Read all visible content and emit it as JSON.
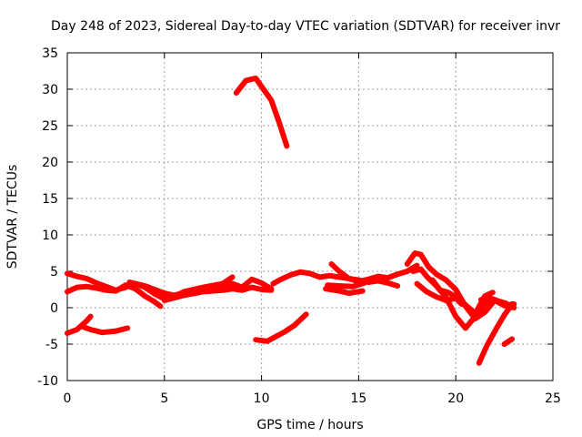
{
  "chart_data": {
    "type": "line",
    "title": "Day 248 of 2023, Sidereal Day-to-day VTEC variation (SDTVAR) for receiver invr",
    "xlabel": "GPS time / hours",
    "ylabel": "SDTVAR / TECUs",
    "xlim": [
      0,
      25
    ],
    "ylim": [
      -10,
      35
    ],
    "xticks": [
      0,
      5,
      10,
      15,
      20,
      25
    ],
    "yticks": [
      -10,
      -5,
      0,
      5,
      10,
      15,
      20,
      25,
      30,
      35
    ],
    "grid": true,
    "color": "#ff0000",
    "series": [
      {
        "name": "trace-1",
        "points": [
          [
            0,
            4.7
          ],
          [
            0.5,
            4.3
          ],
          [
            1.0,
            4.0
          ],
          [
            1.5,
            3.4
          ],
          [
            2.0,
            2.9
          ],
          [
            2.5,
            2.4
          ],
          [
            3.0,
            2.8
          ],
          [
            3.5,
            3.3
          ],
          [
            4.0,
            2.8
          ],
          [
            4.5,
            1.9
          ],
          [
            5.0,
            1.2
          ],
          [
            5.5,
            1.5
          ],
          [
            6.0,
            2.2
          ],
          [
            7.0,
            2.8
          ],
          [
            8.0,
            3.3
          ],
          [
            8.5,
            4.2
          ]
        ]
      },
      {
        "name": "trace-2",
        "points": [
          [
            0,
            2.2
          ],
          [
            0.5,
            2.8
          ],
          [
            1.0,
            2.9
          ],
          [
            1.5,
            2.7
          ],
          [
            2.0,
            2.4
          ],
          [
            2.5,
            2.3
          ],
          [
            3.0,
            3.1
          ],
          [
            3.5,
            2.6
          ],
          [
            4.0,
            1.6
          ],
          [
            4.5,
            0.8
          ],
          [
            4.8,
            0.2
          ]
        ]
      },
      {
        "name": "trace-3",
        "points": [
          [
            3.2,
            3.5
          ],
          [
            4.0,
            3.0
          ],
          [
            5.0,
            2.0
          ],
          [
            5.5,
            1.7
          ],
          [
            6.5,
            2.4
          ],
          [
            7.5,
            2.9
          ],
          [
            8.5,
            3.3
          ],
          [
            9.0,
            2.8
          ],
          [
            9.5,
            3.9
          ],
          [
            10.0,
            3.4
          ],
          [
            10.5,
            2.6
          ]
        ]
      },
      {
        "name": "trace-4",
        "points": [
          [
            5.0,
            1.0
          ],
          [
            6.0,
            1.7
          ],
          [
            7.0,
            2.2
          ],
          [
            8.0,
            2.4
          ],
          [
            8.5,
            2.6
          ],
          [
            9.0,
            2.4
          ],
          [
            9.5,
            2.8
          ],
          [
            10.0,
            2.5
          ],
          [
            10.5,
            2.4
          ]
        ]
      },
      {
        "name": "trace-5",
        "points": [
          [
            10.6,
            3.3
          ],
          [
            11.0,
            3.9
          ],
          [
            11.5,
            4.5
          ],
          [
            12.0,
            4.9
          ],
          [
            12.5,
            4.7
          ],
          [
            13.0,
            4.2
          ],
          [
            13.5,
            4.4
          ],
          [
            14.0,
            4.2
          ],
          [
            14.5,
            4.0
          ],
          [
            15.0,
            3.6
          ],
          [
            15.5,
            3.9
          ],
          [
            16.0,
            4.3
          ],
          [
            16.5,
            4.1
          ],
          [
            17.0,
            4.6
          ],
          [
            17.5,
            5.0
          ],
          [
            18.0,
            5.8
          ]
        ]
      },
      {
        "name": "trace-6",
        "points": [
          [
            13.6,
            6.0
          ],
          [
            14.0,
            5.0
          ],
          [
            14.5,
            4.0
          ],
          [
            15.0,
            3.8
          ],
          [
            15.5,
            3.5
          ],
          [
            16.0,
            3.7
          ],
          [
            16.5,
            3.4
          ],
          [
            17.0,
            3.0
          ]
        ]
      },
      {
        "name": "trace-7",
        "points": [
          [
            13.3,
            2.6
          ],
          [
            14.0,
            2.3
          ],
          [
            14.5,
            2.0
          ],
          [
            15.2,
            2.3
          ]
        ]
      },
      {
        "name": "trace-8",
        "points": [
          [
            13.4,
            3.1
          ],
          [
            14.0,
            3.0
          ],
          [
            14.7,
            2.9
          ],
          [
            15.3,
            3.4
          ]
        ]
      },
      {
        "name": "trace-9",
        "points": [
          [
            17.5,
            6.0
          ],
          [
            17.9,
            7.5
          ],
          [
            18.2,
            7.3
          ],
          [
            18.6,
            5.6
          ],
          [
            19.0,
            4.6
          ],
          [
            19.5,
            3.8
          ],
          [
            20.0,
            2.5
          ],
          [
            20.5,
            0.2
          ],
          [
            21.0,
            -1.5
          ],
          [
            21.5,
            -0.6
          ],
          [
            22.0,
            1.0
          ],
          [
            22.5,
            0.3
          ],
          [
            23.0,
            0.5
          ]
        ]
      },
      {
        "name": "trace-10",
        "points": [
          [
            17.8,
            5.0
          ],
          [
            18.2,
            5.3
          ],
          [
            18.5,
            4.3
          ],
          [
            19.0,
            3.0
          ],
          [
            19.5,
            1.4
          ],
          [
            20.0,
            -1.2
          ],
          [
            20.5,
            -2.8
          ],
          [
            21.0,
            -1.2
          ],
          [
            21.5,
            0.6
          ],
          [
            22.0,
            1.1
          ],
          [
            22.5,
            0.3
          ],
          [
            23.0,
            0.0
          ]
        ]
      },
      {
        "name": "trace-11",
        "points": [
          [
            18.0,
            3.3
          ],
          [
            18.5,
            2.2
          ],
          [
            19.0,
            1.5
          ],
          [
            19.5,
            1.0
          ],
          [
            20.0,
            1.3
          ],
          [
            20.3,
            0.5
          ]
        ]
      },
      {
        "name": "trace-12",
        "points": [
          [
            18.8,
            3.8
          ],
          [
            19.2,
            2.4
          ],
          [
            19.6,
            2.1
          ],
          [
            20.0,
            1.5
          ],
          [
            20.5,
            0.4
          ],
          [
            21.0,
            -0.8
          ],
          [
            21.5,
            1.6
          ],
          [
            21.9,
            2.1
          ]
        ]
      },
      {
        "name": "trace-13",
        "points": [
          [
            0,
            -3.5
          ],
          [
            0.5,
            -3.0
          ],
          [
            1.0,
            -1.8
          ],
          [
            1.2,
            -1.2
          ]
        ]
      },
      {
        "name": "trace-14",
        "points": [
          [
            0.8,
            -2.6
          ],
          [
            1.2,
            -3.0
          ],
          [
            1.8,
            -3.4
          ],
          [
            2.5,
            -3.2
          ],
          [
            3.1,
            -2.8
          ]
        ]
      },
      {
        "name": "trace-15",
        "points": [
          [
            9.7,
            -4.4
          ],
          [
            10.3,
            -4.6
          ],
          [
            10.7,
            -4.0
          ],
          [
            11.2,
            -3.3
          ],
          [
            11.7,
            -2.4
          ],
          [
            12.3,
            -0.9
          ]
        ]
      },
      {
        "name": "trace-16",
        "points": [
          [
            8.7,
            29.5
          ],
          [
            9.2,
            31.2
          ],
          [
            9.7,
            31.5
          ],
          [
            10.1,
            30.0
          ],
          [
            10.5,
            28.5
          ],
          [
            10.9,
            25.5
          ],
          [
            11.3,
            22.2
          ]
        ]
      },
      {
        "name": "trace-17",
        "points": [
          [
            21.2,
            -7.6
          ],
          [
            21.6,
            -5.2
          ],
          [
            22.1,
            -2.8
          ],
          [
            22.5,
            -1.0
          ],
          [
            22.9,
            0.5
          ]
        ]
      },
      {
        "name": "trace-18",
        "points": [
          [
            22.5,
            -5.0
          ],
          [
            22.9,
            -4.3
          ]
        ]
      },
      {
        "name": "trace-19",
        "points": [
          [
            21.3,
            1.1
          ],
          [
            21.7,
            1.4
          ],
          [
            22.2,
            0.9
          ],
          [
            22.6,
            0.6
          ]
        ]
      }
    ]
  }
}
